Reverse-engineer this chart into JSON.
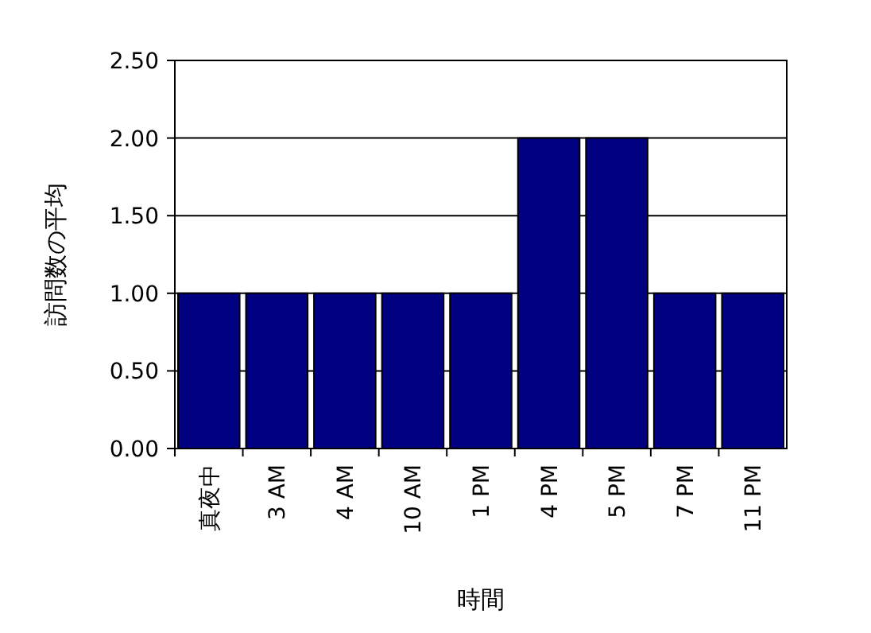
{
  "chart_data": {
    "type": "bar",
    "xlabel": "時間",
    "ylabel": "訪問数の平均",
    "categories": [
      "真夜中",
      "3 AM",
      "4 AM",
      "10 AM",
      "1 PM",
      "4 PM",
      "5 PM",
      "7 PM",
      "11 PM"
    ],
    "series": [
      {
        "color": "#000080",
        "values": [
          1,
          1,
          1,
          1,
          1,
          2,
          2,
          1,
          1
        ]
      }
    ],
    "ylim": [
      0,
      2.5
    ],
    "yticks": [
      {
        "value": 0,
        "label": "0.00"
      },
      {
        "value": 0.5,
        "label": "0.50"
      },
      {
        "value": 1,
        "label": "1.00"
      },
      {
        "value": 1.5,
        "label": "1.50"
      },
      {
        "value": 2,
        "label": "2.00"
      },
      {
        "value": 2.5,
        "label": "2.50"
      }
    ],
    "grid": "y"
  }
}
